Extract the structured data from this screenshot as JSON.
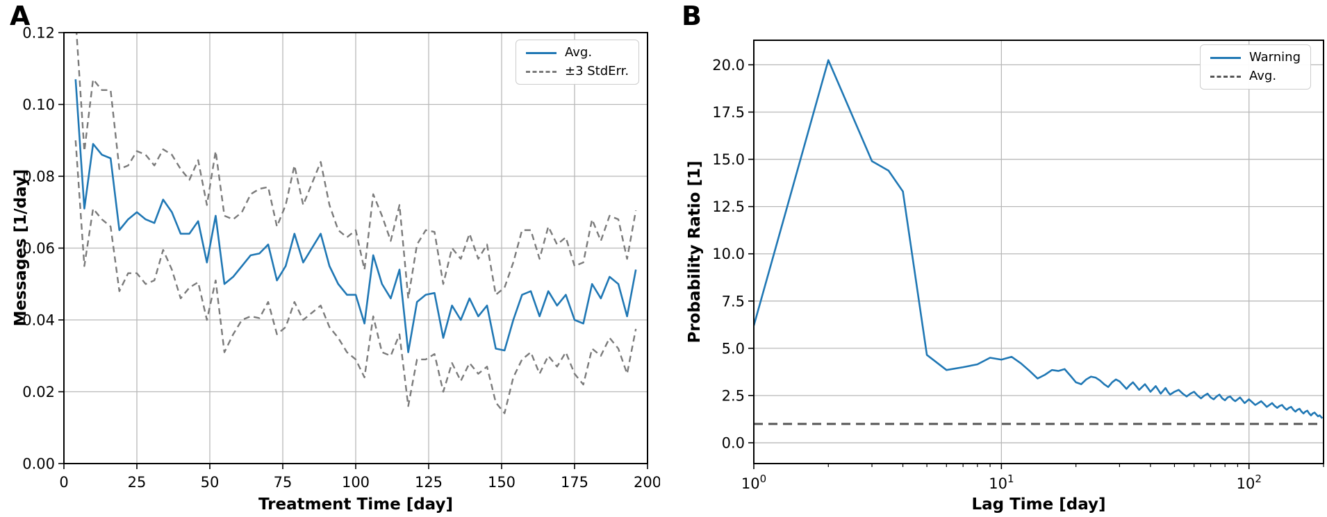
{
  "figure": {
    "background": "#ffffff",
    "accent_blue": "#1f77b4",
    "gray_dashed_a": "#7a7a7a",
    "gray_dashed_b": "#555555",
    "grid_color": "#b8b8b8"
  },
  "chart_data": [
    {
      "panel": "A",
      "type": "line",
      "xlabel": "Treatment Time [day]",
      "ylabel": "Messages [1/day]",
      "xscale": "linear",
      "xlim": [
        0,
        200
      ],
      "ylim": [
        0.0,
        0.12
      ],
      "grid": true,
      "legend_position": "upper right",
      "xticks": [
        0,
        25,
        50,
        75,
        100,
        125,
        150,
        175,
        200
      ],
      "xtick_labels": [
        "0",
        "25",
        "50",
        "75",
        "100",
        "125",
        "150",
        "175",
        "200"
      ],
      "yticks": [
        0.0,
        0.02,
        0.04,
        0.06,
        0.08,
        0.1,
        0.12
      ],
      "ytick_labels": [
        "0.00",
        "0.02",
        "0.04",
        "0.06",
        "0.08",
        "0.10",
        "0.12"
      ],
      "legend": [
        {
          "label": "Avg.",
          "color": "#1f77b4",
          "linestyle": "solid"
        },
        {
          "label": "±3 StdErr.",
          "color": "#7a7a7a",
          "linestyle": "dashed"
        }
      ],
      "series": [
        {
          "name": "Avg.",
          "color": "#1f77b4",
          "linestyle": "solid",
          "x": [
            4,
            7,
            10,
            13,
            16,
            19,
            22,
            25,
            28,
            31,
            34,
            37,
            40,
            43,
            46,
            49,
            52,
            55,
            58,
            61,
            64,
            67,
            70,
            73,
            76,
            79,
            82,
            85,
            88,
            91,
            94,
            97,
            100,
            103,
            106,
            109,
            112,
            115,
            118,
            121,
            124,
            127,
            130,
            133,
            136,
            139,
            142,
            145,
            148,
            151,
            154,
            157,
            160,
            163,
            166,
            169,
            172,
            175,
            178,
            181,
            184,
            187,
            190,
            193,
            196
          ],
          "y": [
            0.107,
            0.071,
            0.089,
            0.086,
            0.085,
            0.065,
            0.068,
            0.07,
            0.068,
            0.067,
            0.0735,
            0.07,
            0.064,
            0.064,
            0.0675,
            0.056,
            0.069,
            0.05,
            0.052,
            0.055,
            0.058,
            0.0585,
            0.061,
            0.051,
            0.055,
            0.064,
            0.056,
            0.06,
            0.064,
            0.055,
            0.05,
            0.047,
            0.047,
            0.039,
            0.058,
            0.05,
            0.046,
            0.054,
            0.031,
            0.045,
            0.047,
            0.0475,
            0.035,
            0.044,
            0.04,
            0.046,
            0.041,
            0.044,
            0.032,
            0.0315,
            0.04,
            0.047,
            0.048,
            0.041,
            0.048,
            0.044,
            0.047,
            0.04,
            0.039,
            0.05,
            0.046,
            0.052,
            0.05,
            0.041,
            0.054
          ]
        },
        {
          "name": "±3 StdErr.",
          "color": "#7a7a7a",
          "linestyle": "dashed",
          "band_center": "Avg.",
          "note": "two dashed lines drawn at Avg + delta and Avg - delta",
          "delta": [
            0.017,
            0.016,
            0.018,
            0.018,
            0.019,
            0.017,
            0.015,
            0.017,
            0.018,
            0.016,
            0.014,
            0.016,
            0.018,
            0.015,
            0.017,
            0.016,
            0.018,
            0.019,
            0.016,
            0.015,
            0.017,
            0.018,
            0.016,
            0.015,
            0.017,
            0.019,
            0.016,
            0.018,
            0.02,
            0.017,
            0.015,
            0.016,
            0.018,
            0.015,
            0.017,
            0.019,
            0.016,
            0.018,
            0.015,
            0.016,
            0.018,
            0.017,
            0.015,
            0.016,
            0.017,
            0.018,
            0.016,
            0.017,
            0.015,
            0.0175,
            0.016,
            0.018,
            0.017,
            0.016,
            0.018,
            0.017,
            0.016,
            0.015,
            0.017,
            0.018,
            0.016,
            0.017,
            0.018,
            0.016,
            0.0165
          ]
        }
      ]
    },
    {
      "panel": "B",
      "type": "line",
      "xlabel": "Lag Time [day]",
      "ylabel": "Probability Ratio [1]",
      "xscale": "log",
      "xlim": [
        1,
        200
      ],
      "ylim": [
        -1.1,
        21.3
      ],
      "grid": true,
      "legend_position": "upper right",
      "xticks": [
        1,
        10,
        100
      ],
      "xtick_labels": [
        "10^0",
        "10^1",
        "10^2"
      ],
      "xtick_base": "10",
      "xtick_exponents": [
        "0",
        "1",
        "2"
      ],
      "xticks_minor": [
        2,
        3,
        4,
        5,
        6,
        7,
        8,
        9,
        20,
        30,
        40,
        50,
        60,
        70,
        80,
        90,
        200
      ],
      "yticks": [
        0.0,
        2.5,
        5.0,
        7.5,
        10.0,
        12.5,
        15.0,
        17.5,
        20.0
      ],
      "ytick_labels": [
        "0.0",
        "2.5",
        "5.0",
        "7.5",
        "10.0",
        "12.5",
        "15.0",
        "17.5",
        "20.0"
      ],
      "legend": [
        {
          "label": "Warning",
          "color": "#1f77b4",
          "linestyle": "solid"
        },
        {
          "label": "Avg.",
          "color": "#555555",
          "linestyle": "dashed"
        }
      ],
      "series": [
        {
          "name": "Warning",
          "color": "#1f77b4",
          "linestyle": "solid",
          "x": [
            1,
            2,
            3,
            3.5,
            4,
            5,
            6,
            7,
            8,
            9,
            10,
            11,
            12,
            13,
            14,
            15,
            16,
            17,
            18,
            19,
            20,
            21,
            22,
            23,
            24,
            25,
            26,
            27,
            28,
            29,
            30,
            31,
            32,
            33,
            34,
            35,
            36,
            37,
            38,
            39,
            40,
            41,
            42,
            43,
            44,
            45,
            46,
            47,
            48,
            50,
            52,
            54,
            56,
            58,
            60,
            62,
            64,
            66,
            68,
            70,
            72,
            74,
            76,
            78,
            80,
            82,
            84,
            86,
            88,
            90,
            92,
            94,
            96,
            98,
            100,
            103,
            106,
            109,
            112,
            115,
            118,
            121,
            124,
            127,
            130,
            133,
            136,
            139,
            142,
            145,
            148,
            151,
            154,
            157,
            160,
            163,
            166,
            169,
            172,
            175,
            178,
            181,
            184,
            187,
            190,
            193,
            196,
            198
          ],
          "y": [
            6.2,
            20.25,
            14.9,
            14.4,
            13.3,
            4.65,
            3.85,
            4.0,
            4.15,
            4.5,
            4.4,
            4.55,
            4.2,
            3.8,
            3.4,
            3.6,
            3.85,
            3.8,
            3.9,
            3.55,
            3.2,
            3.1,
            3.35,
            3.5,
            3.45,
            3.3,
            3.1,
            2.95,
            3.2,
            3.35,
            3.25,
            3.05,
            2.85,
            3.05,
            3.2,
            3.0,
            2.8,
            2.95,
            3.1,
            2.9,
            2.7,
            2.85,
            3.0,
            2.8,
            2.6,
            2.75,
            2.9,
            2.7,
            2.55,
            2.7,
            2.8,
            2.6,
            2.45,
            2.6,
            2.7,
            2.5,
            2.35,
            2.5,
            2.6,
            2.4,
            2.3,
            2.45,
            2.55,
            2.35,
            2.25,
            2.4,
            2.45,
            2.3,
            2.2,
            2.3,
            2.4,
            2.25,
            2.1,
            2.2,
            2.3,
            2.15,
            2.0,
            2.1,
            2.2,
            2.05,
            1.9,
            2.0,
            2.1,
            1.95,
            1.85,
            1.95,
            2.0,
            1.85,
            1.75,
            1.85,
            1.9,
            1.75,
            1.65,
            1.75,
            1.8,
            1.65,
            1.55,
            1.65,
            1.7,
            1.55,
            1.45,
            1.55,
            1.6,
            1.5,
            1.4,
            1.45,
            1.35,
            1.3
          ]
        },
        {
          "name": "Avg.",
          "color": "#555555",
          "linestyle": "dashed",
          "y_const": 1.0,
          "x_span": [
            1,
            200
          ]
        }
      ]
    }
  ]
}
